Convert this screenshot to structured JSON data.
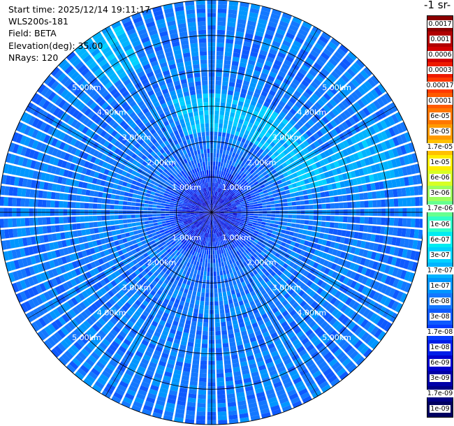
{
  "header": {
    "start_time": "Start time: 2025/12/14 19:11:17",
    "instrument": "WLS200s-181",
    "field": "Field: BETA",
    "elevation": "Elevation(deg): 35.00",
    "nrays": "NRays: 120"
  },
  "colorbar": {
    "title_fragment": "-1 sr-",
    "ticks": [
      "0.0017",
      "0.001",
      "0.0006",
      "0.0003",
      "0.00017",
      "0.0001",
      "6e-05",
      "3e-05",
      "1.7e-05",
      "1e-05",
      "6e-06",
      "3e-06",
      "1.7e-06",
      "1e-06",
      "6e-07",
      "3e-07",
      "1.7e-07",
      "1e-07",
      "6e-08",
      "3e-08",
      "1.7e-08",
      "1e-08",
      "6e-09",
      "3e-09",
      "1.7e-09",
      "1e-09"
    ],
    "colors": [
      "#8b0000",
      "#b00000",
      "#d20000",
      "#ee1a00",
      "#ff3a00",
      "#ff5a00",
      "#ff7700",
      "#ff9a00",
      "#ffc000",
      "#ffee00",
      "#d8ff24",
      "#9cff5e",
      "#66ff90",
      "#30ffc8",
      "#00ecf0",
      "#00d2ff",
      "#00b4ff",
      "#0096ff",
      "#1478ff",
      "#0e5aff",
      "#063cff",
      "#001ee8",
      "#0000cd",
      "#0000a8",
      "#000085",
      "#000060"
    ]
  },
  "chart_data": {
    "type": "heatmap",
    "projection": "polar",
    "title": "",
    "field": "BETA",
    "elevation_deg": 35.0,
    "n_rays": 120,
    "range_rings_km": [
      1,
      2,
      3,
      4,
      5
    ],
    "ring_labels": [
      "1.00km",
      "2.00km",
      "3.00km",
      "4.00km",
      "5.00km"
    ],
    "max_range_km": 6,
    "color_scale": "log",
    "value_range": [
      1e-09,
      0.0017
    ],
    "values_by_range_km": {
      "ranges": [
        0.5,
        1.5,
        2.5,
        3.5,
        4.5,
        5.5
      ],
      "typical_beta": [
        8e-09,
        4e-08,
        6e-08,
        6e-08,
        6e-08,
        6e-08
      ],
      "enhanced_ring_beta": 2e-07,
      "enhanced_azimuth_deg": [
        -20,
        75
      ]
    },
    "legend": "right"
  }
}
